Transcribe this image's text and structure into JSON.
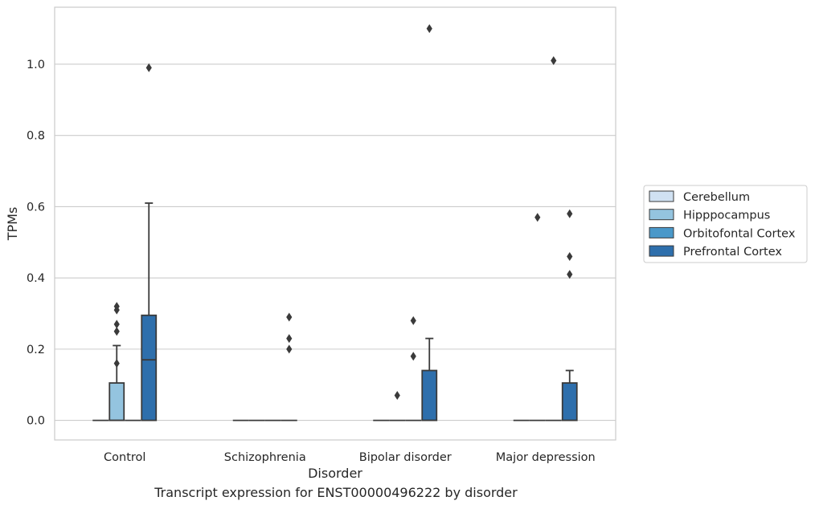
{
  "caption": "Transcript expression for ENST00000496222 by disorder",
  "chart_data": {
    "type": "box",
    "xlabel": "Disorder",
    "ylabel": "TPMs",
    "categories": [
      "Control",
      "Schizophrenia",
      "Bipolar disorder",
      "Major depression"
    ],
    "ylim": [
      -0.055,
      1.16
    ],
    "yticks": [
      "0.0",
      "0.2",
      "0.4",
      "0.6",
      "0.8",
      "1.0"
    ],
    "grid": true,
    "legend_position": "right",
    "series": [
      {
        "name": "Cerebellum",
        "color": "#d0e1f2",
        "boxes": [
          {
            "q1": 0,
            "median": 0,
            "q3": 0,
            "whislo": 0,
            "whishi": 0,
            "fliers": []
          },
          {
            "q1": 0,
            "median": 0,
            "q3": 0,
            "whislo": 0,
            "whishi": 0,
            "fliers": []
          },
          {
            "q1": 0,
            "median": 0,
            "q3": 0,
            "whislo": 0,
            "whishi": 0,
            "fliers": []
          },
          {
            "q1": 0,
            "median": 0,
            "q3": 0,
            "whislo": 0,
            "whishi": 0,
            "fliers": []
          }
        ]
      },
      {
        "name": "Hipppocampus",
        "color": "#94c4df",
        "boxes": [
          {
            "q1": 0,
            "median": 0,
            "q3": 0.105,
            "whislo": 0,
            "whishi": 0.21,
            "fliers": [
              0.16,
              0.25,
              0.27,
              0.31,
              0.32
            ]
          },
          {
            "q1": 0,
            "median": 0,
            "q3": 0,
            "whislo": 0,
            "whishi": 0,
            "fliers": []
          },
          {
            "q1": 0,
            "median": 0,
            "q3": 0,
            "whislo": 0,
            "whishi": 0,
            "fliers": [
              0.07
            ]
          },
          {
            "q1": 0,
            "median": 0,
            "q3": 0,
            "whislo": 0,
            "whishi": 0,
            "fliers": [
              0.57
            ]
          }
        ]
      },
      {
        "name": "Orbitofontal Cortex",
        "color": "#4a98c9",
        "boxes": [
          {
            "q1": 0,
            "median": 0,
            "q3": 0,
            "whislo": 0,
            "whishi": 0,
            "fliers": []
          },
          {
            "q1": 0,
            "median": 0,
            "q3": 0,
            "whislo": 0,
            "whishi": 0,
            "fliers": []
          },
          {
            "q1": 0,
            "median": 0,
            "q3": 0,
            "whislo": 0,
            "whishi": 0,
            "fliers": [
              0.18,
              0.28
            ]
          },
          {
            "q1": 0,
            "median": 0,
            "q3": 0,
            "whislo": 0,
            "whishi": 0,
            "fliers": [
              1.01
            ]
          }
        ]
      },
      {
        "name": "Prefrontal Cortex",
        "color": "#2e6fac",
        "boxes": [
          {
            "q1": 0,
            "median": 0.17,
            "q3": 0.295,
            "whislo": 0,
            "whishi": 0.61,
            "fliers": [
              0.99
            ]
          },
          {
            "q1": 0,
            "median": 0,
            "q3": 0,
            "whislo": 0,
            "whishi": 0,
            "fliers": [
              0.2,
              0.23,
              0.29
            ]
          },
          {
            "q1": 0,
            "median": 0,
            "q3": 0.14,
            "whislo": 0,
            "whishi": 0.23,
            "fliers": [
              1.1
            ]
          },
          {
            "q1": 0,
            "median": 0,
            "q3": 0.105,
            "whislo": 0,
            "whishi": 0.14,
            "fliers": [
              0.41,
              0.46,
              0.58
            ]
          }
        ]
      }
    ]
  }
}
